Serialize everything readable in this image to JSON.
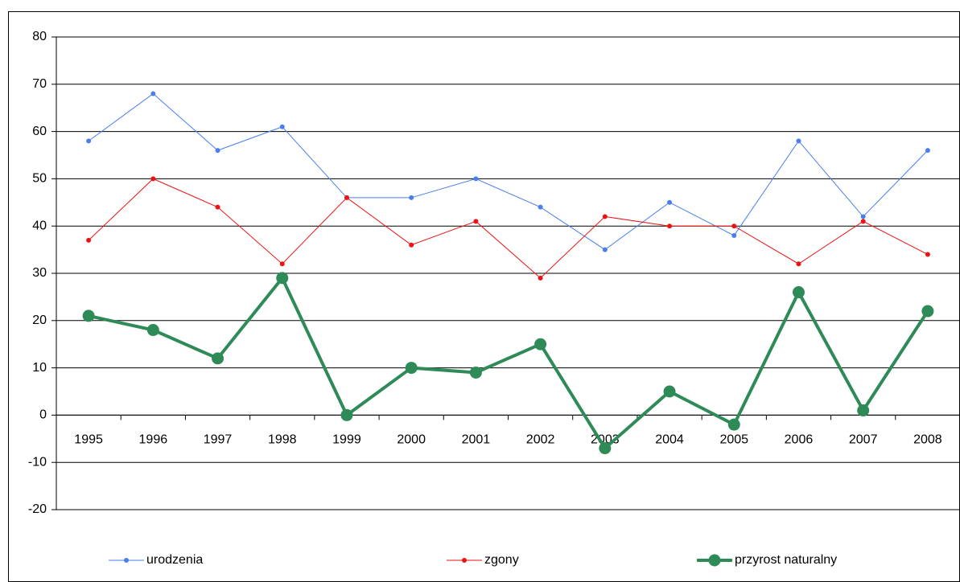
{
  "chart_data": {
    "type": "line",
    "categories": [
      "1995",
      "1996",
      "1997",
      "1998",
      "1999",
      "2000",
      "2001",
      "2002",
      "2003",
      "2004",
      "2005",
      "2006",
      "2007",
      "2008"
    ],
    "series": [
      {
        "name": "urodzenia",
        "color": "#4a7ef0",
        "values": [
          58,
          68,
          56,
          61,
          46,
          46,
          50,
          44,
          35,
          45,
          38,
          58,
          42,
          56
        ]
      },
      {
        "name": "zgony",
        "color": "#ee1111",
        "values": [
          37,
          50,
          44,
          32,
          46,
          36,
          41,
          29,
          42,
          40,
          40,
          32,
          41,
          34
        ]
      },
      {
        "name": "przyrost naturalny",
        "color": "#2e8b57",
        "values": [
          21,
          18,
          12,
          29,
          0,
          10,
          9,
          15,
          -7,
          5,
          -2,
          26,
          1,
          22
        ]
      }
    ],
    "ylim": [
      -20,
      80
    ],
    "yticks": [
      -20,
      -10,
      0,
      10,
      20,
      30,
      40,
      50,
      60,
      70,
      80
    ],
    "grid": true,
    "legend": "bottom"
  }
}
